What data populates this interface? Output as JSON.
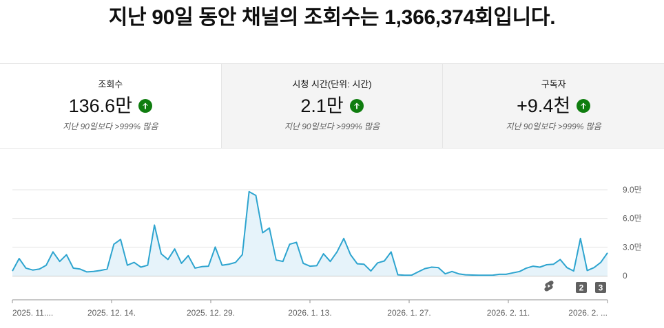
{
  "headline": "지난 90일 동안 채널의 조회수는 1,366,374회입니다.",
  "metrics": [
    {
      "label": "조회수",
      "value": "136.6만",
      "note": "지난 90일보다 >999% 많음",
      "icon": "arrow-up-circle"
    },
    {
      "label": "시청 시간(단위: 시간)",
      "value": "2.1만",
      "note": "지난 90일보다 >999% 많음",
      "icon": "arrow-up-circle"
    },
    {
      "label": "구독자",
      "value": "+9.4천",
      "note": "지난 90일보다 >999% 많음",
      "icon": "arrow-up-circle"
    }
  ],
  "colors": {
    "line": "#2da4cf",
    "fill": "#e6f3fa",
    "up": "#0f7d0f"
  },
  "markers": [
    {
      "label": "2"
    },
    {
      "label": "3"
    }
  ],
  "chart_data": {
    "type": "area",
    "ylim": [
      0,
      90000
    ],
    "yticks": [
      0,
      30000,
      60000,
      90000
    ],
    "ytick_labels": [
      "0",
      "3.0만",
      "6.0만",
      "9.0만"
    ],
    "xtick_labels": [
      "2025. 11....",
      "2025. 12. 14.",
      "2025. 12. 29.",
      "2026. 1. 13.",
      "2026. 1. 27.",
      "2026. 2. 11.",
      "2026. 2. ..."
    ],
    "values": [
      5000,
      18000,
      8000,
      6000,
      7000,
      11000,
      25000,
      15000,
      22000,
      8000,
      7000,
      4000,
      4500,
      5500,
      7000,
      33000,
      38000,
      11000,
      14000,
      9000,
      11000,
      53000,
      23000,
      17000,
      28000,
      13000,
      21000,
      8000,
      9500,
      10000,
      30000,
      11000,
      12000,
      14000,
      22000,
      88000,
      84000,
      45000,
      50000,
      16500,
      15000,
      33000,
      35000,
      13000,
      10000,
      10500,
      23000,
      15000,
      25000,
      39000,
      22000,
      12500,
      12000,
      5000,
      13500,
      15500,
      25000,
      1000,
      500,
      500,
      4000,
      7500,
      9000,
      8500,
      2000,
      4500,
      2000,
      1000,
      700,
      500,
      500,
      500,
      1500,
      1500,
      3000,
      4500,
      8000,
      10000,
      9000,
      11500,
      12000,
      17000,
      8500,
      5000,
      39000,
      5500,
      8500,
      14000,
      24000
    ],
    "grid": true
  }
}
